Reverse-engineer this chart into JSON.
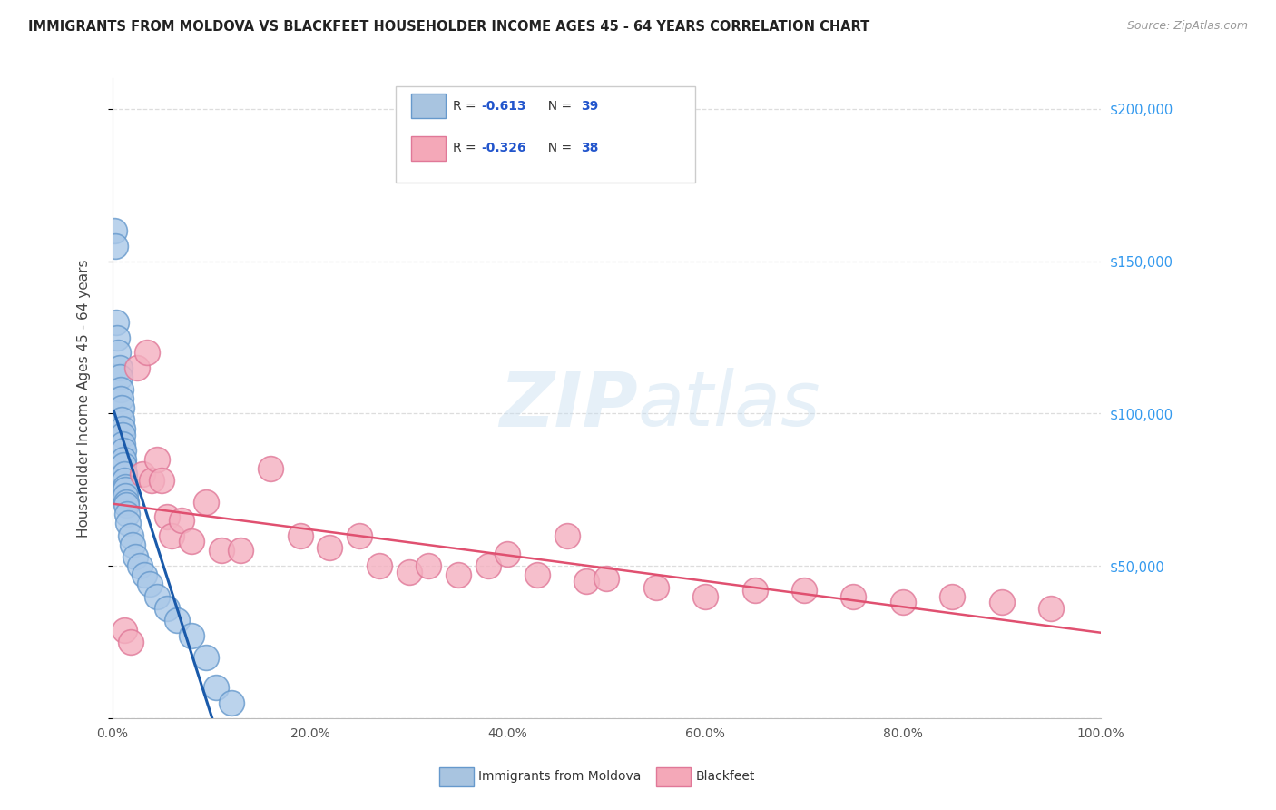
{
  "title": "IMMIGRANTS FROM MOLDOVA VS BLACKFEET HOUSEHOLDER INCOME AGES 45 - 64 YEARS CORRELATION CHART",
  "source": "Source: ZipAtlas.com",
  "ylabel": "Householder Income Ages 45 - 64 years",
  "legend_1_r": "-0.613",
  "legend_1_n": "39",
  "legend_2_r": "-0.326",
  "legend_2_n": "38",
  "legend_1_color": "#a8c4e0",
  "legend_2_color": "#f4a8b8",
  "scatter_color_blue": "#aac8e8",
  "scatter_color_pink": "#f4b0c0",
  "scatter_edge_blue": "#6699cc",
  "scatter_edge_pink": "#e07898",
  "trendline_blue": "#1a5aaa",
  "trendline_pink": "#e05070",
  "grid_color": "#dddddd",
  "background": "#ffffff",
  "moldova_x": [
    0.15,
    0.25,
    0.4,
    0.5,
    0.6,
    0.7,
    0.7,
    0.8,
    0.85,
    0.9,
    0.9,
    1.0,
    1.0,
    1.05,
    1.1,
    1.1,
    1.15,
    1.2,
    1.2,
    1.25,
    1.3,
    1.3,
    1.35,
    1.4,
    1.5,
    1.6,
    1.8,
    2.0,
    2.3,
    2.8,
    3.2,
    3.8,
    4.5,
    5.5,
    6.5,
    8.0,
    9.5,
    10.5,
    12.0
  ],
  "moldova_y": [
    160000,
    155000,
    130000,
    125000,
    120000,
    115000,
    112000,
    108000,
    105000,
    102000,
    98000,
    95000,
    93000,
    90000,
    88000,
    85000,
    83000,
    80000,
    78000,
    76000,
    75000,
    73000,
    71000,
    70000,
    67000,
    64000,
    60000,
    57000,
    53000,
    50000,
    47000,
    44000,
    40000,
    36000,
    32000,
    27000,
    20000,
    10000,
    5000
  ],
  "blackfeet_x": [
    1.2,
    1.8,
    2.5,
    3.0,
    3.5,
    4.0,
    4.5,
    5.0,
    5.5,
    6.0,
    7.0,
    8.0,
    9.5,
    11.0,
    13.0,
    16.0,
    19.0,
    22.0,
    25.0,
    27.0,
    30.0,
    32.0,
    35.0,
    38.0,
    40.0,
    43.0,
    46.0,
    48.0,
    50.0,
    55.0,
    60.0,
    65.0,
    70.0,
    75.0,
    80.0,
    85.0,
    90.0,
    95.0
  ],
  "blackfeet_y": [
    29000,
    25000,
    115000,
    80000,
    120000,
    78000,
    85000,
    78000,
    66000,
    60000,
    65000,
    58000,
    71000,
    55000,
    55000,
    82000,
    60000,
    56000,
    60000,
    50000,
    48000,
    50000,
    47000,
    50000,
    54000,
    47000,
    60000,
    45000,
    46000,
    43000,
    40000,
    42000,
    42000,
    40000,
    38000,
    40000,
    38000,
    36000
  ],
  "xlim": [
    0,
    100
  ],
  "ylim": [
    0,
    210000
  ],
  "yticks": [
    0,
    50000,
    100000,
    150000,
    200000
  ],
  "right_yticklabels": [
    "",
    "$50,000",
    "$100,000",
    "$150,000",
    "$200,000"
  ],
  "figsize": [
    14.06,
    8.92
  ],
  "dpi": 100
}
